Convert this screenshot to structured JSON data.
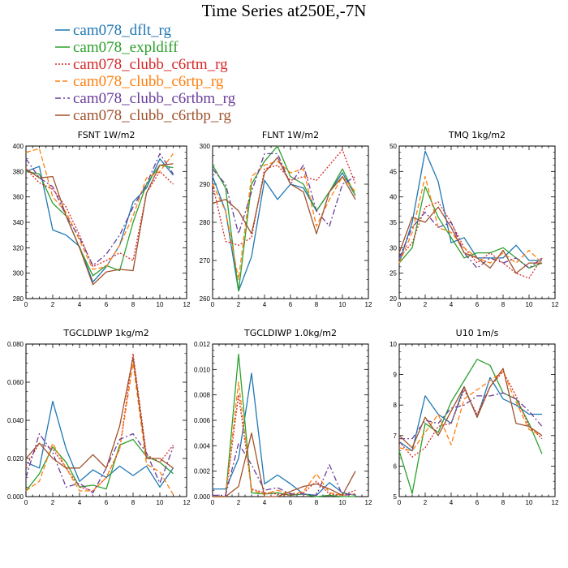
{
  "figure": {
    "title": "Time Series at250E,-7N"
  },
  "legend": [
    {
      "name": "cam078_dflt_rg",
      "color": "#1f77b4",
      "dash": "solid"
    },
    {
      "name": "cam078_expldiff",
      "color": "#2ca02c",
      "dash": "solid"
    },
    {
      "name": "cam078_clubb_c6rtm_rg",
      "color": "#d62728",
      "dash": "dotted"
    },
    {
      "name": "cam078_clubb_c6rtp_rg",
      "color": "#ff7f0e",
      "dash": "dashed"
    },
    {
      "name": "cam078_clubb_c6rtbm_rg",
      "color": "#6a3d9a",
      "dash": "dashdot"
    },
    {
      "name": "cam078_clubb_c6rtbp_rg",
      "color": "#a0522d",
      "dash": "solid"
    }
  ],
  "chart_data": [
    {
      "type": "line",
      "title": "FSNT   1W/m2",
      "x": [
        0,
        1,
        2,
        3,
        4,
        5,
        6,
        7,
        8,
        9,
        10,
        11
      ],
      "xlim": [
        0,
        12
      ],
      "xticks": [
        "0",
        "2",
        "4",
        "6",
        "8",
        "10",
        "12"
      ],
      "ylim": [
        280,
        400
      ],
      "yticks": [
        "280",
        "300",
        "320",
        "340",
        "360",
        "380",
        "400"
      ],
      "series": [
        {
          "name": "cam078_dflt_rg",
          "values": [
            380,
            384,
            334,
            330,
            321,
            293,
            305,
            322,
            356,
            367,
            390,
            377
          ]
        },
        {
          "name": "cam078_expldiff",
          "values": [
            380,
            378,
            355,
            345,
            320,
            298,
            306,
            302,
            340,
            370,
            385,
            383
          ]
        },
        {
          "name": "cam078_clubb_c6rtm_rg",
          "values": [
            382,
            371,
            366,
            352,
            330,
            305,
            310,
            316,
            310,
            363,
            380,
            370
          ]
        },
        {
          "name": "cam078_clubb_c6rtp_rg",
          "values": [
            395,
            398,
            360,
            348,
            326,
            303,
            305,
            322,
            345,
            375,
            380,
            394
          ]
        },
        {
          "name": "cam078_clubb_c6rtbm_rg",
          "values": [
            390,
            375,
            368,
            345,
            328,
            306,
            315,
            330,
            352,
            370,
            394,
            378
          ]
        },
        {
          "name": "cam078_clubb_c6rtbp_rg",
          "values": [
            382,
            375,
            376,
            345,
            320,
            291,
            301,
            303,
            302,
            363,
            385,
            386
          ]
        }
      ]
    },
    {
      "type": "line",
      "title": "FLNT   1W/m2",
      "x": [
        0,
        1,
        2,
        3,
        4,
        5,
        6,
        7,
        8,
        9,
        10,
        11
      ],
      "xlim": [
        0,
        12
      ],
      "xticks": [
        "0",
        "2",
        "4",
        "6",
        "8",
        "10",
        "12"
      ],
      "ylim": [
        260,
        300
      ],
      "yticks": [
        "260",
        "270",
        "280",
        "290",
        "300"
      ],
      "series": [
        {
          "name": "cam078_dflt_rg",
          "values": [
            292,
            283,
            262,
            271,
            291,
            286,
            290,
            289,
            283,
            288,
            293,
            287
          ]
        },
        {
          "name": "cam078_expldiff",
          "values": [
            295,
            289,
            262,
            290,
            296,
            300,
            292,
            290,
            283,
            288,
            294,
            287
          ]
        },
        {
          "name": "cam078_clubb_c6rtm_rg",
          "values": [
            290,
            275,
            274,
            276,
            294,
            295,
            291,
            292,
            291,
            295,
            299,
            290
          ]
        },
        {
          "name": "cam078_clubb_c6rtp_rg",
          "values": [
            290,
            283,
            265,
            292,
            295,
            296,
            293,
            294,
            279,
            286,
            292,
            288
          ]
        },
        {
          "name": "cam078_clubb_c6rtbm_rg",
          "values": [
            294,
            290,
            277,
            288,
            298,
            298,
            290,
            295,
            283,
            279,
            290,
            292
          ]
        },
        {
          "name": "cam078_clubb_c6rtbp_rg",
          "values": [
            285,
            286,
            283,
            277,
            293,
            297,
            290,
            288,
            277,
            288,
            292,
            286
          ]
        }
      ]
    },
    {
      "type": "line",
      "title": "TMQ   1kg/m2",
      "x": [
        0,
        1,
        2,
        3,
        4,
        5,
        6,
        7,
        8,
        9,
        10,
        11
      ],
      "xlim": [
        0,
        12
      ],
      "xticks": [
        "0",
        "2",
        "4",
        "6",
        "8",
        "10",
        "12"
      ],
      "ylim": [
        20,
        50
      ],
      "yticks": [
        "20",
        "25",
        "30",
        "35",
        "40",
        "45",
        "50"
      ],
      "series": [
        {
          "name": "cam078_dflt_rg",
          "values": [
            27,
            35,
            49,
            43,
            31,
            32,
            28,
            28,
            28,
            30.5,
            27.5,
            27.5
          ]
        },
        {
          "name": "cam078_expldiff",
          "values": [
            27,
            30,
            42,
            36,
            32,
            28,
            29,
            29,
            30,
            28,
            26,
            27
          ]
        },
        {
          "name": "cam078_clubb_c6rtm_rg",
          "values": [
            28,
            31,
            38,
            39,
            35,
            30,
            27,
            29,
            27,
            25,
            24,
            28
          ]
        },
        {
          "name": "cam078_clubb_c6rtp_rg",
          "values": [
            27,
            33,
            44,
            34,
            33,
            30,
            28,
            27,
            29,
            27,
            29.5,
            27
          ]
        },
        {
          "name": "cam078_clubb_c6rtbm_rg",
          "values": [
            28,
            34,
            37,
            34,
            35,
            29,
            26,
            28,
            27,
            28,
            26,
            28
          ]
        },
        {
          "name": "cam078_clubb_c6rtbp_rg",
          "values": [
            29,
            36,
            35,
            38,
            34,
            29,
            28,
            26,
            29.5,
            25,
            27,
            27
          ]
        }
      ]
    },
    {
      "type": "line",
      "title": "TGCLDLWP   1kg/m2",
      "x": [
        0,
        1,
        2,
        3,
        4,
        5,
        6,
        7,
        8,
        9,
        10,
        11
      ],
      "xlim": [
        0,
        12
      ],
      "xticks": [
        "0",
        "2",
        "4",
        "6",
        "8",
        "10",
        "12"
      ],
      "ylim": [
        0.0,
        0.08
      ],
      "yticks": [
        "0.000",
        "0.020",
        "0.040",
        "0.060",
        "0.080"
      ],
      "series": [
        {
          "name": "cam078_dflt_rg",
          "values": [
            0.018,
            0.015,
            0.05,
            0.025,
            0.008,
            0.014,
            0.01,
            0.016,
            0.011,
            0.016,
            0.005,
            0.015
          ]
        },
        {
          "name": "cam078_expldiff",
          "values": [
            0.003,
            0.012,
            0.026,
            0.018,
            0.005,
            0.006,
            0.004,
            0.027,
            0.03,
            0.021,
            0.018,
            0.012
          ]
        },
        {
          "name": "cam078_clubb_c6rtm_rg",
          "values": [
            0.016,
            0.028,
            0.025,
            0.015,
            0.005,
            0.003,
            0.01,
            0.025,
            0.075,
            0.022,
            0.018,
            0.027
          ]
        },
        {
          "name": "cam078_clubb_c6rtp_rg",
          "values": [
            0.003,
            0.008,
            0.028,
            0.015,
            0.003,
            0.003,
            0.01,
            0.025,
            0.07,
            0.017,
            0.013,
            0.001
          ]
        },
        {
          "name": "cam078_clubb_c6rtbm_rg",
          "values": [
            0.01,
            0.033,
            0.023,
            0.005,
            0.007,
            0.002,
            0.015,
            0.03,
            0.033,
            0.023,
            0.007,
            0.026
          ]
        },
        {
          "name": "cam078_clubb_c6rtbp_rg",
          "values": [
            0.02,
            0.028,
            0.02,
            0.015,
            0.015,
            0.022,
            0.015,
            0.037,
            0.073,
            0.02,
            0.02,
            0.015
          ]
        }
      ]
    },
    {
      "type": "line",
      "title": "TGCLDIWP   1.0kg/m2",
      "x": [
        0,
        1,
        2,
        3,
        4,
        5,
        6,
        7,
        8,
        9,
        10,
        11
      ],
      "xlim": [
        0,
        12
      ],
      "xticks": [
        "0",
        "2",
        "4",
        "6",
        "8",
        "10",
        "12"
      ],
      "ylim": [
        0.0,
        0.012
      ],
      "yticks": [
        "0.000",
        "0.002",
        "0.004",
        "0.006",
        "0.008",
        "0.010",
        "0.012"
      ],
      "series": [
        {
          "name": "cam078_dflt_rg",
          "values": [
            0.0006,
            0.0006,
            0.003,
            0.0097,
            0.001,
            0.0017,
            0.001,
            0.0002,
            0.0001,
            0.0011,
            0.0003,
            0.0001
          ]
        },
        {
          "name": "cam078_expldiff",
          "values": [
            0.0,
            0.0,
            0.0112,
            0.0003,
            0.0002,
            0.0003,
            0.0001,
            0.0002,
            0.0,
            0.0001,
            0.0,
            0.0
          ]
        },
        {
          "name": "cam078_clubb_c6rtm_rg",
          "values": [
            0.0,
            0.0,
            0.008,
            0.0006,
            0.0003,
            0.0002,
            0.0001,
            0.0003,
            0.0012,
            0.0002,
            0.0001,
            0.0005
          ]
        },
        {
          "name": "cam078_clubb_c6rtp_rg",
          "values": [
            0.0,
            0.0,
            0.009,
            0.0005,
            0.0002,
            0.0005,
            0.0002,
            0.0004,
            0.0018,
            0.0003,
            0.0001,
            0.0002
          ]
        },
        {
          "name": "cam078_clubb_c6rtbm_rg",
          "values": [
            0.0001,
            0.0001,
            0.0042,
            0.0025,
            0.0005,
            0.0007,
            0.0002,
            0.0002,
            0.0001,
            0.0025,
            0.0001,
            0.0002
          ]
        },
        {
          "name": "cam078_clubb_c6rtbp_rg",
          "values": [
            0.0,
            0.0,
            0.0008,
            0.005,
            0.0,
            0.0,
            0.0004,
            0.0008,
            0.001,
            0.0006,
            0.0001,
            0.002
          ]
        }
      ]
    },
    {
      "type": "line",
      "title": "U10   1m/s",
      "x": [
        0,
        1,
        2,
        3,
        4,
        5,
        6,
        7,
        8,
        9,
        10,
        11
      ],
      "xlim": [
        0,
        12
      ],
      "xticks": [
        "0",
        "2",
        "4",
        "6",
        "8",
        "10",
        "12"
      ],
      "ylim": [
        5,
        10
      ],
      "yticks": [
        "5",
        "6",
        "7",
        "8",
        "9",
        "10"
      ],
      "series": [
        {
          "name": "cam078_dflt_rg",
          "values": [
            6.8,
            6.5,
            8.3,
            7.7,
            7.4,
            8.6,
            7.6,
            8.9,
            8.2,
            8.0,
            7.7,
            7.7
          ]
        },
        {
          "name": "cam078_expldiff",
          "values": [
            6.5,
            5.1,
            7.4,
            7.1,
            8.1,
            8.8,
            9.5,
            9.3,
            8.4,
            8.2,
            7.4,
            6.4
          ]
        },
        {
          "name": "cam078_clubb_c6rtm_rg",
          "values": [
            6.8,
            6.3,
            6.6,
            7.3,
            7.4,
            8.5,
            7.7,
            8.6,
            9.1,
            8.3,
            7.3,
            6.9
          ]
        },
        {
          "name": "cam078_clubb_c6rtp_rg",
          "values": [
            6.6,
            6.5,
            7.1,
            7.7,
            6.7,
            8.2,
            8.5,
            8.8,
            9.1,
            8.1,
            7.2,
            7.0
          ]
        },
        {
          "name": "cam078_clubb_c6rtbm_rg",
          "values": [
            6.9,
            6.9,
            7.5,
            7.4,
            7.9,
            8.0,
            8.3,
            8.3,
            8.4,
            8.2,
            7.8,
            7.3
          ]
        },
        {
          "name": "cam078_clubb_c6rtbp_rg",
          "values": [
            7.0,
            6.6,
            7.6,
            7.0,
            7.8,
            8.6,
            7.6,
            8.6,
            9.2,
            7.4,
            7.3,
            7.0
          ]
        }
      ]
    }
  ]
}
